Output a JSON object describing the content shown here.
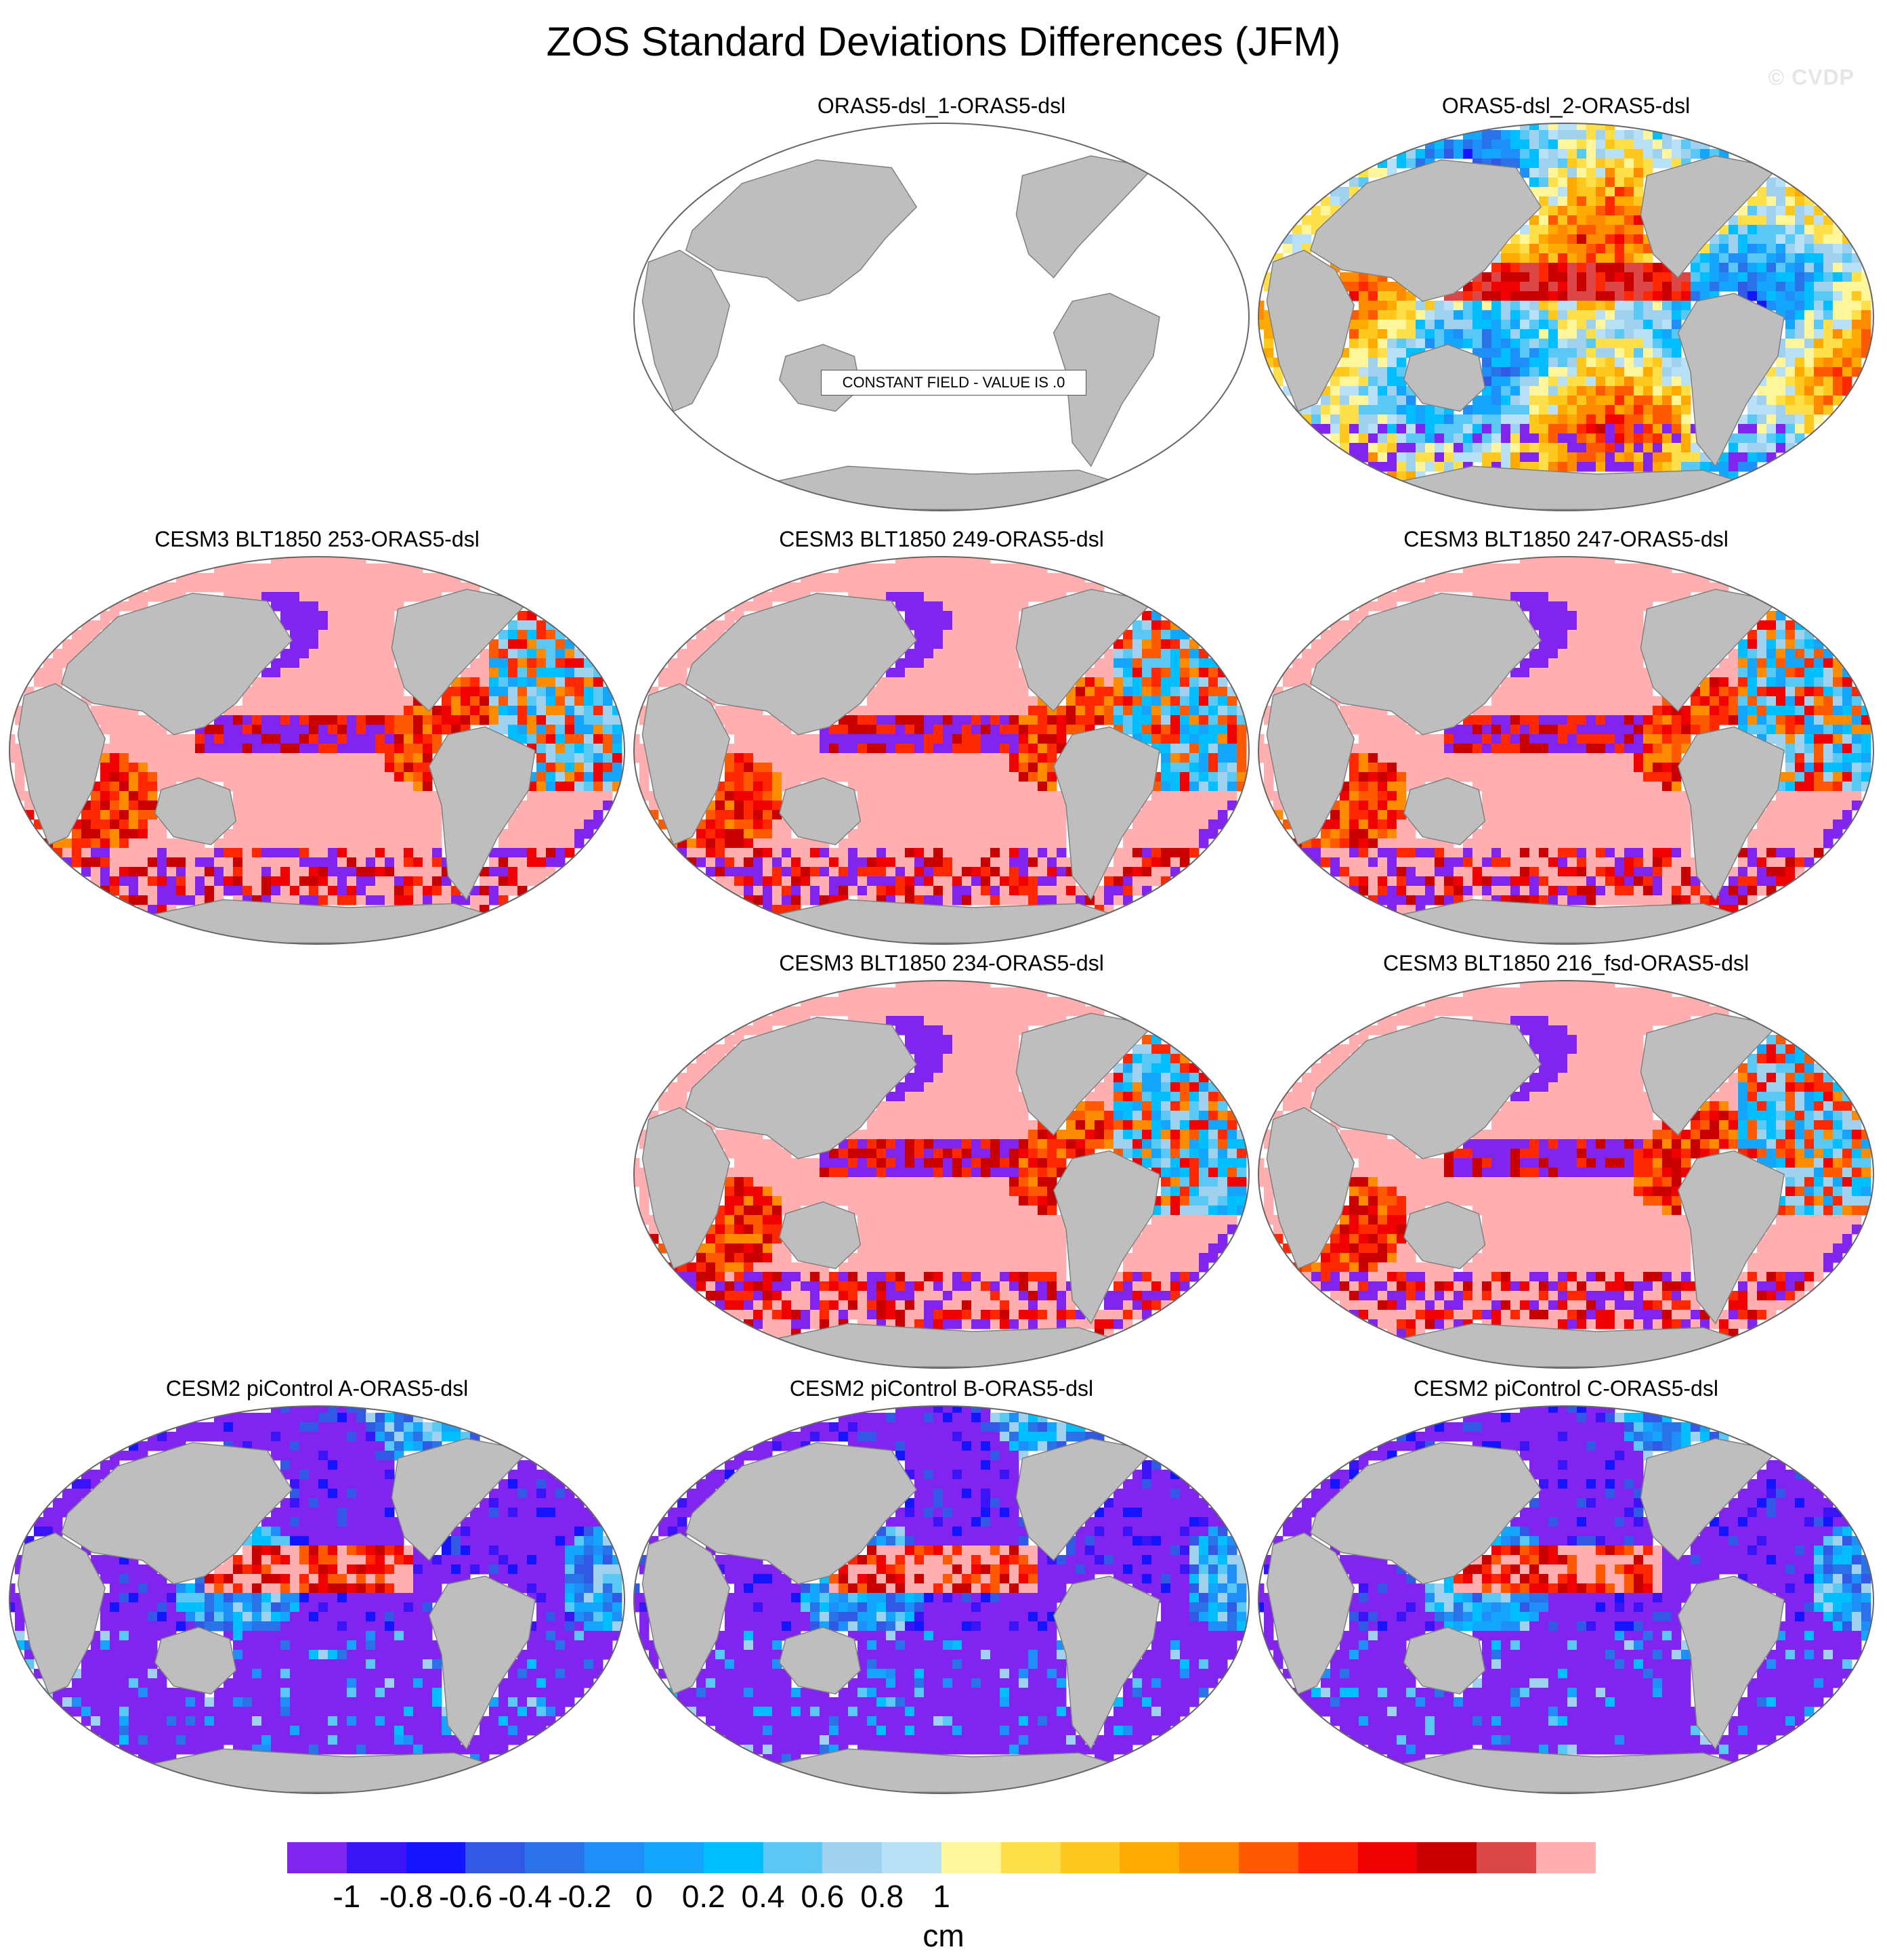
{
  "title": "ZOS Standard Deviations Differences (JFM)",
  "watermark": "© CVDP",
  "constant_label": "CONSTANT FIELD - VALUE IS .0",
  "panels": [
    {
      "id": "p-oras5-1",
      "title": "ORAS5-dsl_1-ORAS5-dsl",
      "pattern": "constant"
    },
    {
      "id": "p-oras5-2",
      "title": "ORAS5-dsl_2-ORAS5-dsl",
      "pattern": "mixed"
    },
    {
      "id": "p-253",
      "title": "CESM3 BLT1850 253-ORAS5-dsl",
      "pattern": "positive"
    },
    {
      "id": "p-249",
      "title": "CESM3 BLT1850 249-ORAS5-dsl",
      "pattern": "positive"
    },
    {
      "id": "p-247",
      "title": "CESM3 BLT1850 247-ORAS5-dsl",
      "pattern": "positive"
    },
    {
      "id": "p-234",
      "title": "CESM3 BLT1850 234-ORAS5-dsl",
      "pattern": "positive"
    },
    {
      "id": "p-216",
      "title": "CESM3 BLT1850 216_fsd-ORAS5-dsl",
      "pattern": "positive"
    },
    {
      "id": "p-pic-a",
      "title": "CESM2 piControl A-ORAS5-dsl",
      "pattern": "negative"
    },
    {
      "id": "p-pic-b",
      "title": "CESM2 piControl B-ORAS5-dsl",
      "pattern": "negative"
    },
    {
      "id": "p-pic-c",
      "title": "CESM2 piControl C-ORAS5-dsl",
      "pattern": "negative"
    }
  ],
  "colorbar": {
    "units": "cm",
    "tick_labels": [
      "-1",
      "-0.8",
      "-0.6",
      "-0.4",
      "-0.2",
      "0",
      "0.2",
      "0.4",
      "0.6",
      "0.8",
      "1"
    ],
    "tick_values": [
      -1,
      -0.8,
      -0.6,
      -0.4,
      -0.2,
      0,
      0.2,
      0.4,
      0.6,
      0.8,
      1
    ],
    "colors": [
      "#8224F0",
      "#3A14F5",
      "#1414FF",
      "#3258E6",
      "#2A72E8",
      "#1E8EF8",
      "#14A6FF",
      "#00BEFF",
      "#5AC8F5",
      "#A0D2F0",
      "#B8E0F6",
      "#FFF59A",
      "#FFE04A",
      "#FFC81E",
      "#FFAA00",
      "#FF8C00",
      "#FF5A00",
      "#FF2800",
      "#F00000",
      "#C80000",
      "#DC4646",
      "#FFAFAF"
    ]
  },
  "colors": {
    "land": "#BEBEBE",
    "coast": "#808080"
  }
}
